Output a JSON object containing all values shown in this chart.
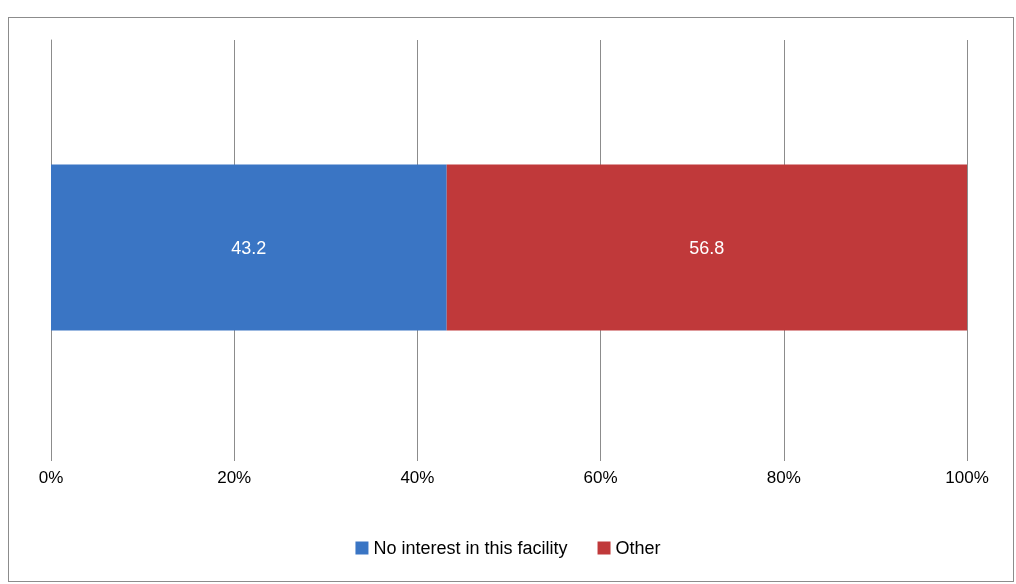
{
  "chart_data": {
    "type": "bar",
    "orientation": "horizontal",
    "stacked": true,
    "categories": [
      null
    ],
    "series": [
      {
        "name": "No interest in this facility",
        "color": "#3a75c4",
        "values": [
          43.2
        ]
      },
      {
        "name": "Other",
        "color": "#c0393a",
        "values": [
          56.8
        ]
      }
    ],
    "xlim": [
      0,
      100
    ],
    "xticks": [
      {
        "value": 0,
        "label": "0%"
      },
      {
        "value": 20,
        "label": "20%"
      },
      {
        "value": 40,
        "label": "40%"
      },
      {
        "value": 60,
        "label": "60%"
      },
      {
        "value": 80,
        "label": "80%"
      },
      {
        "value": 100,
        "label": "100%"
      }
    ],
    "grid": "x",
    "legend": "bottom",
    "data_labels": true
  }
}
